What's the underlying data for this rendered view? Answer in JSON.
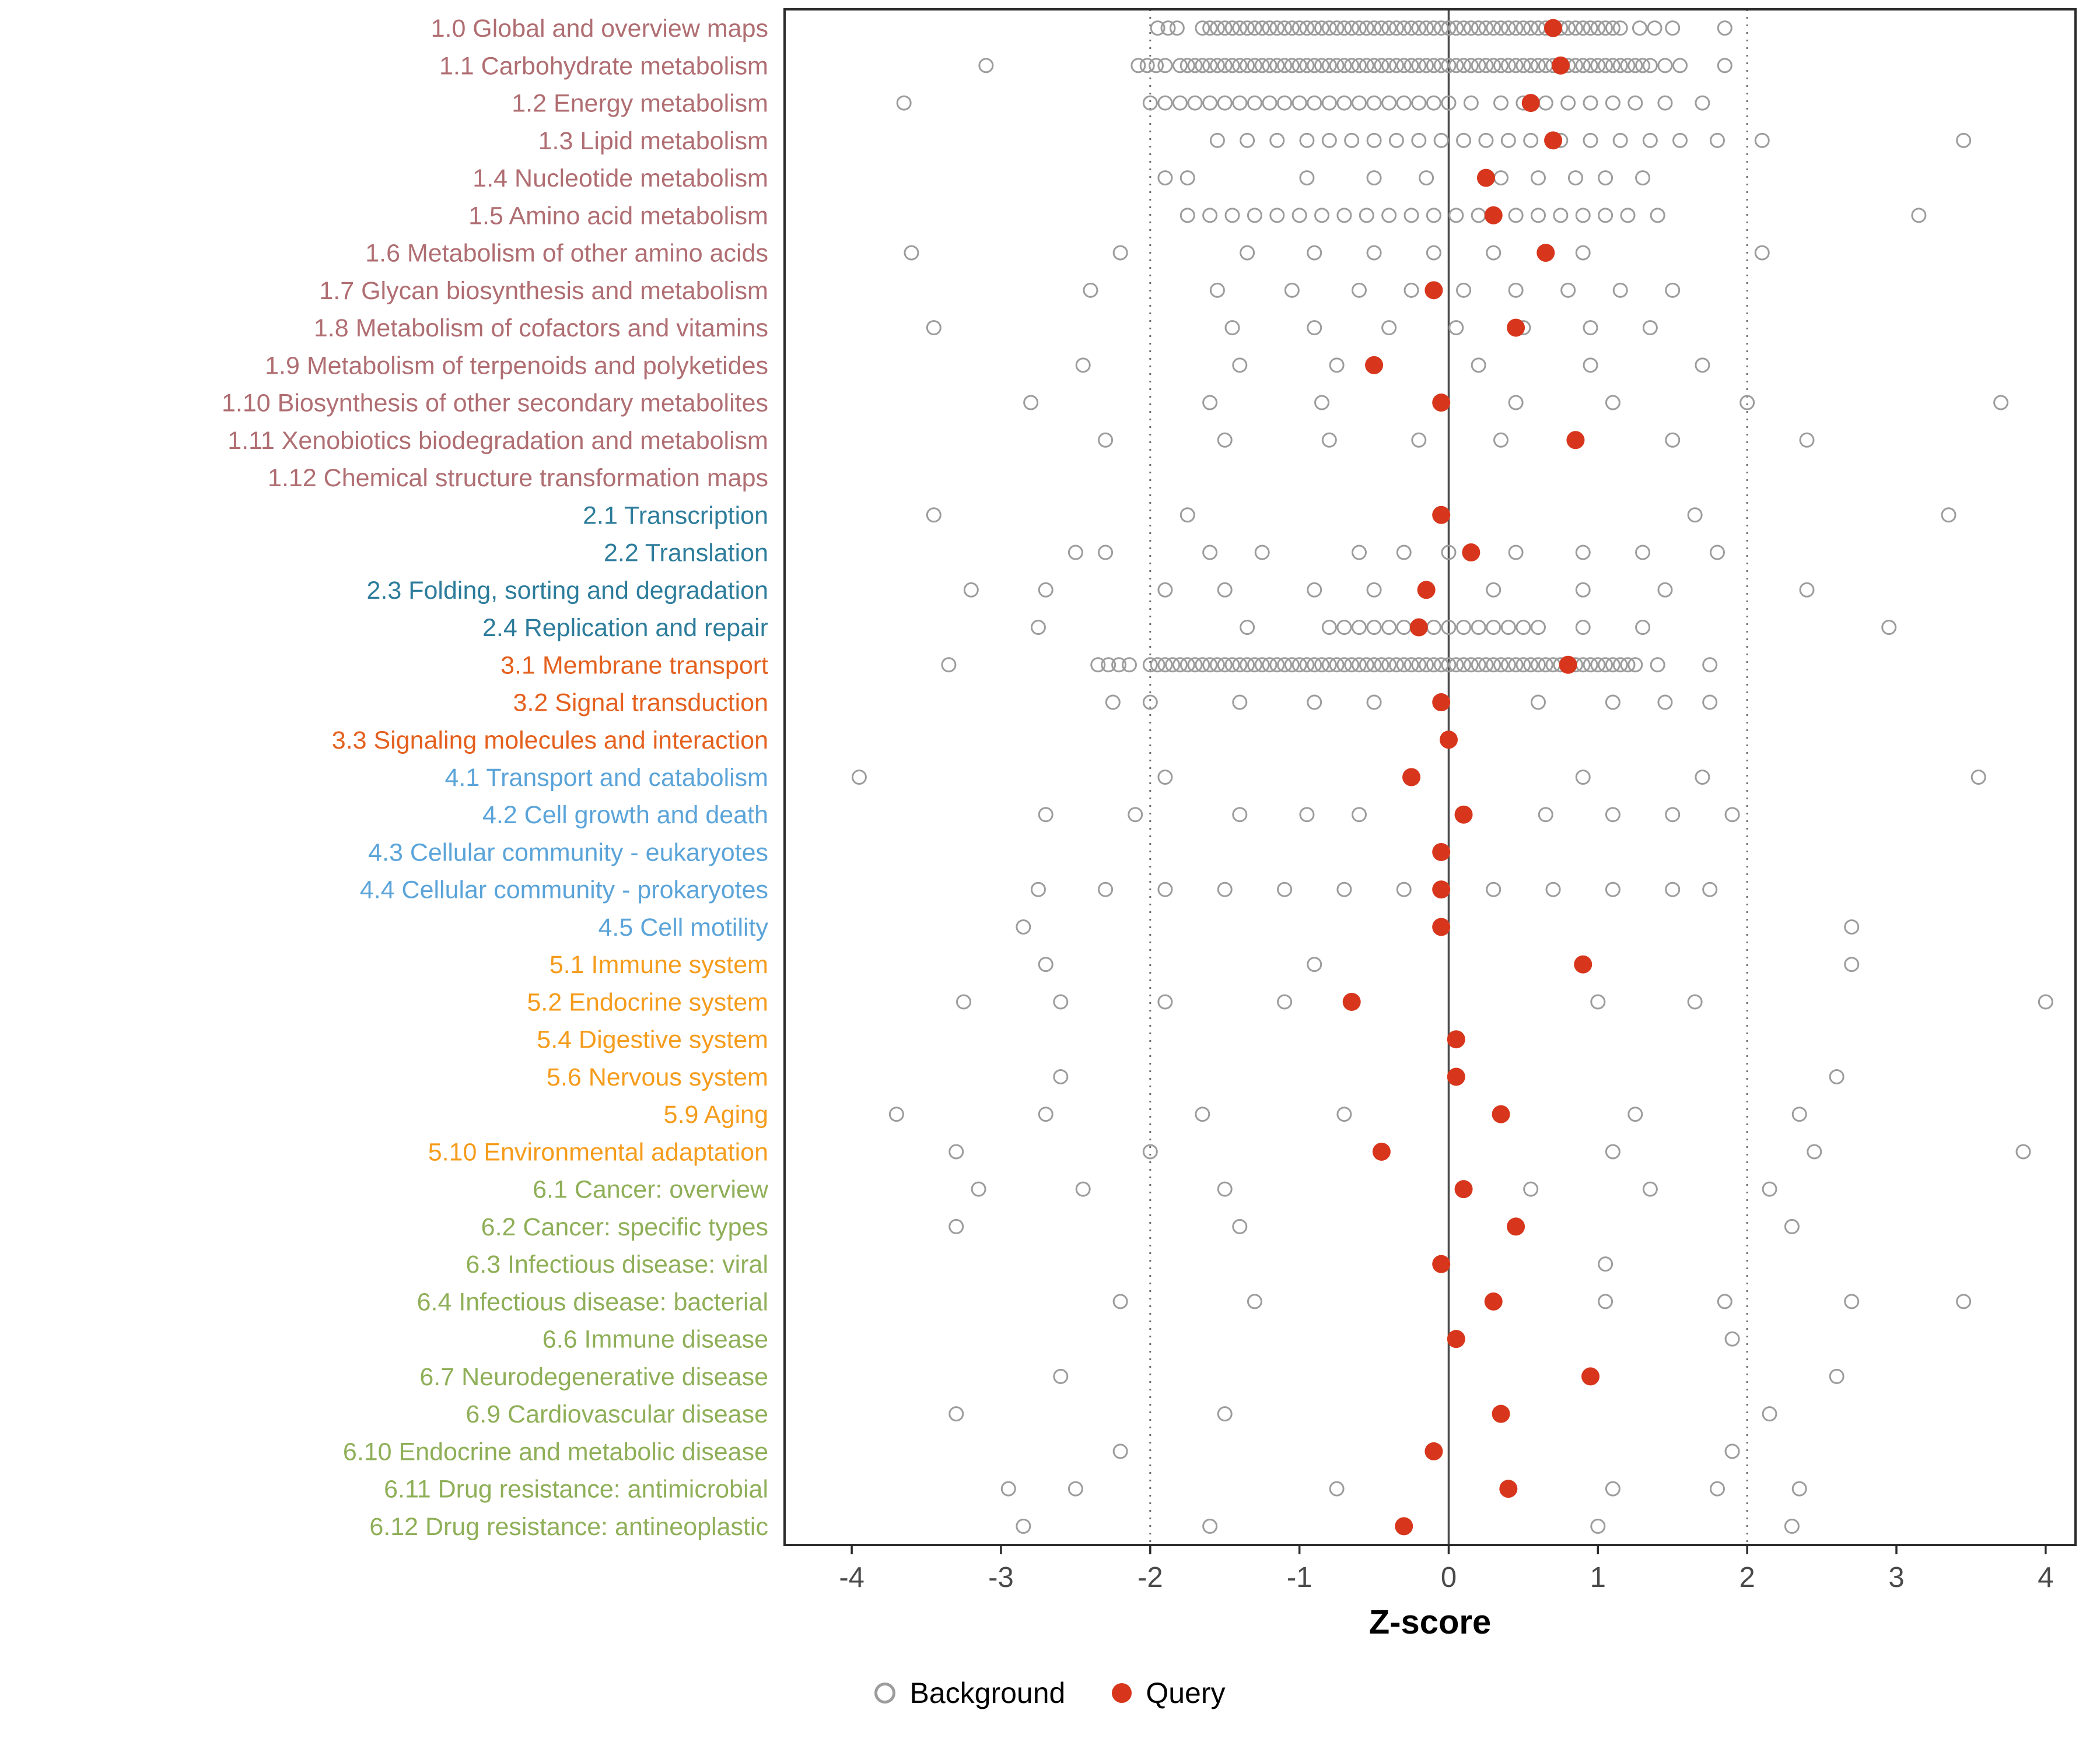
{
  "chart_data": {
    "type": "scatter",
    "title": "",
    "xlabel": "Z-score",
    "xlim": [
      -4.45,
      4.2
    ],
    "x_ticks": [
      -4,
      -3,
      -2,
      -1,
      0,
      1,
      2,
      3,
      4
    ],
    "reference_lines": {
      "solid": [
        0
      ],
      "dotted": [
        -2,
        2
      ]
    },
    "legend": [
      {
        "label": "Background",
        "marker": "open-circle",
        "color": "#9C9C9C"
      },
      {
        "label": "Query",
        "marker": "filled-circle",
        "color": "#D7361C"
      }
    ],
    "background_color": "#9C9C9C",
    "query_color": "#D7361C",
    "colors": {
      "metabolism": "#B06E72",
      "genetic": "#2D7C9B",
      "environmental": "#E4601E",
      "cellular": "#5BA4D9",
      "organismal": "#F59C1C",
      "disease": "#8FAF58"
    },
    "rows": [
      {
        "label": "1.0 Global and overview maps",
        "group": "metabolism",
        "query": 0.7,
        "background": [
          -1.95,
          -1.88,
          -1.82,
          {
            "from": -1.65,
            "to": 1.15,
            "step": 0.05
          },
          1.28,
          1.38,
          1.5,
          1.85
        ]
      },
      {
        "label": "1.1 Carbohydrate metabolism",
        "group": "metabolism",
        "query": 0.75,
        "background": [
          -3.1,
          -2.08,
          -2.02,
          -1.96,
          -1.9,
          {
            "from": -1.8,
            "to": 1.35,
            "step": 0.05
          },
          1.45,
          1.55,
          1.85
        ]
      },
      {
        "label": "1.2 Energy metabolism",
        "group": "metabolism",
        "query": 0.55,
        "background": [
          -3.65,
          {
            "from": -2.0,
            "to": 0.0,
            "step": 0.1
          },
          0.15,
          0.35,
          0.5,
          0.65,
          0.8,
          0.95,
          1.1,
          1.25,
          1.45,
          1.7
        ]
      },
      {
        "label": "1.3 Lipid metabolism",
        "group": "metabolism",
        "query": 0.7,
        "background": [
          -1.55,
          -1.35,
          -1.15,
          -0.95,
          -0.8,
          -0.65,
          -0.5,
          -0.35,
          -0.2,
          -0.05,
          0.1,
          0.25,
          0.4,
          0.55,
          0.75,
          0.95,
          1.15,
          1.35,
          1.55,
          1.8,
          2.1,
          3.45
        ]
      },
      {
        "label": "1.4 Nucleotide metabolism",
        "group": "metabolism",
        "query": 0.25,
        "background": [
          -1.9,
          -1.75,
          -0.95,
          -0.5,
          -0.15,
          0.35,
          0.6,
          0.85,
          1.05,
          1.3
        ]
      },
      {
        "label": "1.5 Amino acid metabolism",
        "group": "metabolism",
        "query": 0.3,
        "background": [
          -1.75,
          -1.6,
          -1.45,
          -1.3,
          -1.15,
          -1.0,
          -0.85,
          -0.7,
          -0.55,
          -0.4,
          -0.25,
          -0.1,
          0.05,
          0.2,
          0.45,
          0.6,
          0.75,
          0.9,
          1.05,
          1.2,
          1.4,
          3.15
        ]
      },
      {
        "label": "1.6 Metabolism of other amino acids",
        "group": "metabolism",
        "query": 0.65,
        "background": [
          -3.6,
          -2.2,
          -1.35,
          -0.9,
          -0.5,
          -0.1,
          0.3,
          0.9,
          2.1
        ]
      },
      {
        "label": "1.7 Glycan biosynthesis and metabolism",
        "group": "metabolism",
        "query": -0.1,
        "background": [
          -2.4,
          -1.55,
          -1.05,
          -0.6,
          -0.25,
          0.1,
          0.45,
          0.8,
          1.15,
          1.5
        ]
      },
      {
        "label": "1.8 Metabolism of cofactors and vitamins",
        "group": "metabolism",
        "query": 0.45,
        "background": [
          -3.45,
          -1.45,
          -0.9,
          -0.4,
          0.05,
          0.5,
          0.95,
          1.35
        ]
      },
      {
        "label": "1.9 Metabolism of terpenoids and polyketides",
        "group": "metabolism",
        "query": -0.5,
        "background": [
          -2.45,
          -1.4,
          -0.75,
          0.2,
          0.95,
          1.7
        ]
      },
      {
        "label": "1.10 Biosynthesis of other secondary metabolites",
        "group": "metabolism",
        "query": -0.05,
        "background": [
          -2.8,
          -1.6,
          -0.85,
          0.45,
          1.1,
          2.0,
          3.7
        ]
      },
      {
        "label": "1.11 Xenobiotics biodegradation and metabolism",
        "group": "metabolism",
        "query": 0.85,
        "background": [
          -2.3,
          -1.5,
          -0.8,
          -0.2,
          0.35,
          1.5,
          2.4
        ]
      },
      {
        "label": "1.12 Chemical structure transformation maps",
        "group": "metabolism",
        "query": null,
        "background": []
      },
      {
        "label": "2.1 Transcription",
        "group": "genetic",
        "query": -0.05,
        "background": [
          -3.45,
          -1.75,
          1.65,
          3.35
        ]
      },
      {
        "label": "2.2 Translation",
        "group": "genetic",
        "query": 0.15,
        "background": [
          -2.5,
          -2.3,
          -1.6,
          -1.25,
          -0.6,
          -0.3,
          0.0,
          0.45,
          0.9,
          1.3,
          1.8
        ]
      },
      {
        "label": "2.3 Folding, sorting and degradation",
        "group": "genetic",
        "query": -0.15,
        "background": [
          -3.2,
          -2.7,
          -1.9,
          -1.5,
          -0.9,
          -0.5,
          0.3,
          0.9,
          1.45,
          2.4
        ]
      },
      {
        "label": "2.4 Replication and repair",
        "group": "genetic",
        "query": -0.2,
        "background": [
          -2.75,
          -1.35,
          {
            "from": -0.8,
            "to": 0.6,
            "step": 0.1
          },
          0.9,
          1.3,
          2.95
        ]
      },
      {
        "label": "3.1 Membrane transport",
        "group": "environmental",
        "query": 0.8,
        "background": [
          -3.35,
          -2.35,
          -2.28,
          -2.21,
          -2.14,
          {
            "from": -2.0,
            "to": 1.25,
            "step": 0.05
          },
          1.4,
          1.75
        ]
      },
      {
        "label": "3.2 Signal transduction",
        "group": "environmental",
        "query": -0.05,
        "background": [
          -2.25,
          -2.0,
          -1.4,
          -0.9,
          -0.5,
          0.6,
          1.1,
          1.45,
          1.75
        ]
      },
      {
        "label": "3.3 Signaling molecules and interaction",
        "group": "environmental",
        "query": 0.0,
        "background": []
      },
      {
        "label": "4.1 Transport and catabolism",
        "group": "cellular",
        "query": -0.25,
        "background": [
          -3.95,
          -1.9,
          0.9,
          1.7,
          3.55
        ]
      },
      {
        "label": "4.2 Cell growth and death",
        "group": "cellular",
        "query": 0.1,
        "background": [
          -2.7,
          -2.1,
          -1.4,
          -0.95,
          -0.6,
          0.65,
          1.1,
          1.5,
          1.9
        ]
      },
      {
        "label": "4.3 Cellular community - eukaryotes",
        "group": "cellular",
        "query": -0.05,
        "background": []
      },
      {
        "label": "4.4 Cellular community - prokaryotes",
        "group": "cellular",
        "query": -0.05,
        "background": [
          -2.75,
          -2.3,
          -1.9,
          -1.5,
          -1.1,
          -0.7,
          -0.3,
          0.3,
          0.7,
          1.1,
          1.5,
          1.75
        ]
      },
      {
        "label": "4.5 Cell motility",
        "group": "cellular",
        "query": -0.05,
        "background": [
          -2.85,
          2.7
        ]
      },
      {
        "label": "5.1 Immune system",
        "group": "organismal",
        "query": 0.9,
        "background": [
          -2.7,
          -0.9,
          2.7
        ]
      },
      {
        "label": "5.2 Endocrine system",
        "group": "organismal",
        "query": -0.65,
        "background": [
          -3.25,
          -2.6,
          -1.9,
          -1.1,
          1.0,
          1.65,
          4.0
        ]
      },
      {
        "label": "5.4 Digestive system",
        "group": "organismal",
        "query": 0.05,
        "background": []
      },
      {
        "label": "5.6 Nervous system",
        "group": "organismal",
        "query": 0.05,
        "background": [
          -2.6,
          2.6
        ]
      },
      {
        "label": "5.9 Aging",
        "group": "organismal",
        "query": 0.35,
        "background": [
          -3.7,
          -2.7,
          -1.65,
          -0.7,
          1.25,
          2.35
        ]
      },
      {
        "label": "5.10 Environmental adaptation",
        "group": "organismal",
        "query": -0.45,
        "background": [
          -3.3,
          -2.0,
          1.1,
          2.45,
          3.85
        ]
      },
      {
        "label": "6.1 Cancer: overview",
        "group": "disease",
        "query": 0.1,
        "background": [
          -3.15,
          -2.45,
          -1.5,
          0.55,
          1.35,
          2.15
        ]
      },
      {
        "label": "6.2 Cancer: specific types",
        "group": "disease",
        "query": 0.45,
        "background": [
          -3.3,
          -1.4,
          2.3
        ]
      },
      {
        "label": "6.3 Infectious disease: viral",
        "group": "disease",
        "query": -0.05,
        "background": [
          1.05
        ]
      },
      {
        "label": "6.4 Infectious disease: bacterial",
        "group": "disease",
        "query": 0.3,
        "background": [
          -2.2,
          -1.3,
          1.05,
          1.85,
          2.7,
          3.45
        ]
      },
      {
        "label": "6.6 Immune disease",
        "group": "disease",
        "query": 0.05,
        "background": [
          1.9
        ]
      },
      {
        "label": "6.7 Neurodegenerative disease",
        "group": "disease",
        "query": 0.95,
        "background": [
          -2.6,
          2.6
        ]
      },
      {
        "label": "6.9 Cardiovascular disease",
        "group": "disease",
        "query": 0.35,
        "background": [
          -3.3,
          -1.5,
          2.15
        ]
      },
      {
        "label": "6.10 Endocrine and metabolic disease",
        "group": "disease",
        "query": -0.1,
        "background": [
          -2.2,
          1.9
        ]
      },
      {
        "label": "6.11 Drug resistance: antimicrobial",
        "group": "disease",
        "query": 0.4,
        "background": [
          -2.95,
          -2.5,
          -0.75,
          1.1,
          1.8,
          2.35
        ]
      },
      {
        "label": "6.12 Drug resistance: antineoplastic",
        "group": "disease",
        "query": -0.3,
        "background": [
          -2.85,
          -1.6,
          1.0,
          2.3
        ]
      }
    ]
  }
}
